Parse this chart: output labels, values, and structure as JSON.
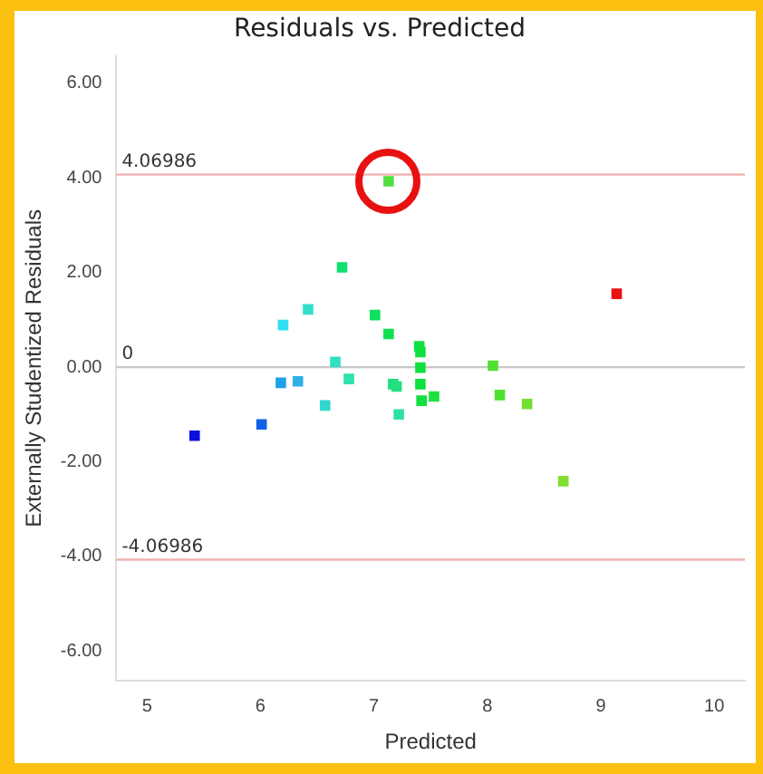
{
  "chart_data": {
    "type": "scatter",
    "title": "Residuals vs. Predicted",
    "xlabel": "Predicted",
    "ylabel": "Externally Studentized Residuals",
    "x": [
      5.42,
      6.01,
      6.18,
      6.33,
      6.2,
      6.42,
      6.57,
      6.66,
      6.72,
      6.78,
      7.01,
      7.13,
      7.13,
      7.17,
      7.2,
      7.22,
      7.4,
      7.41,
      7.41,
      7.41,
      7.42,
      7.53,
      8.05,
      8.11,
      8.35,
      8.67,
      9.14
    ],
    "values": [
      -1.45,
      -1.21,
      -0.33,
      -0.3,
      0.89,
      1.22,
      -0.81,
      0.11,
      2.11,
      -0.25,
      1.1,
      0.7,
      3.93,
      -0.36,
      -0.41,
      -1.0,
      0.44,
      0.32,
      -0.01,
      -0.36,
      -0.71,
      -0.62,
      0.03,
      -0.59,
      -0.78,
      -2.41,
      1.55
    ],
    "colors": [
      "#0a10e0",
      "#1060e8",
      "#20a0e8",
      "#30b0e8",
      "#30e0f0",
      "#30e0c8",
      "#30d8d0",
      "#30e0c0",
      "#10e070",
      "#30e0b0",
      "#10e060",
      "#10e050",
      "#50e040",
      "#20e080",
      "#20e080",
      "#30e0a0",
      "#10e040",
      "#10e040",
      "#10e040",
      "#10e040",
      "#10e040",
      "#20e040",
      "#50e030",
      "#50e030",
      "#70e030",
      "#80e030",
      "#e81010"
    ],
    "marker": "square",
    "xlim": [
      4.73,
      10.27
    ],
    "ylim": [
      -6.63,
      6.58
    ],
    "xticks": [
      5,
      6,
      7,
      8,
      9,
      10
    ],
    "yticks": [
      {
        "value": -6,
        "label": "-6.00"
      },
      {
        "value": -4,
        "label": "-4.00"
      },
      {
        "value": -2,
        "label": "-2.00"
      },
      {
        "value": 0,
        "label": "0.00"
      },
      {
        "value": 2,
        "label": "2.00"
      },
      {
        "value": 4,
        "label": "4.00"
      },
      {
        "value": 6,
        "label": "6.00"
      }
    ],
    "grid": false,
    "legend": false,
    "ref_lines": [
      {
        "axis": "y",
        "value": 4.06986,
        "label": "4.06986",
        "color": "#f0b0b0"
      },
      {
        "axis": "y",
        "value": 0,
        "label": "0",
        "color": "#c8c8c8"
      },
      {
        "axis": "y",
        "value": -4.06986,
        "label": "-4.06986",
        "color": "#f0b0b0"
      }
    ]
  }
}
